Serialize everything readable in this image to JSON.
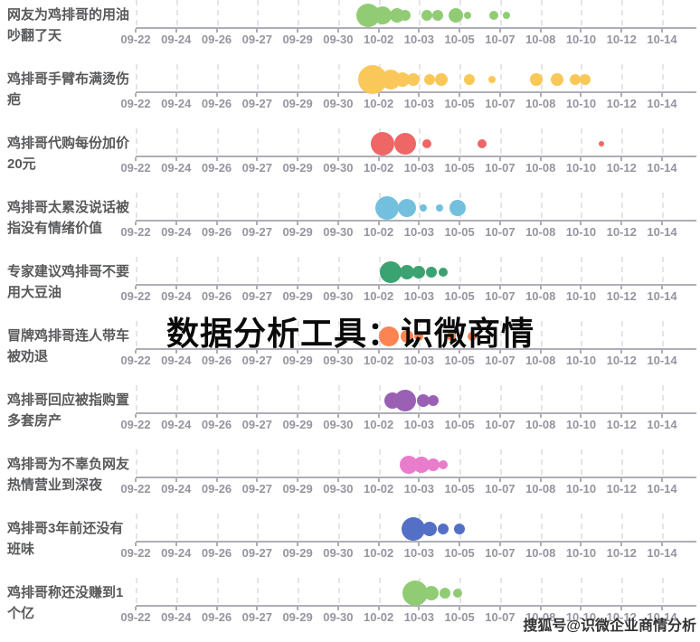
{
  "watermark": "数据分析工具：识微商情",
  "credit": "搜狐号@识微企业商情分析",
  "axis": {
    "dates": [
      "09-22",
      "09-24",
      "09-26",
      "09-27",
      "09-29",
      "09-30",
      "10-02",
      "10-03",
      "10-05",
      "10-07",
      "10-08",
      "10-10",
      "10-12",
      "10-14"
    ]
  },
  "chart_data": {
    "type": "scatter",
    "subtype": "bubble-timeline",
    "description": "每行一个热点话题，气泡沿日期轴分布，气泡大小表示当日话题热度声量；pos 为日期刻度的小数索引(0=09-22 … 13=10-14)，size 为气泡半径(px)",
    "x_ticks": [
      "09-22",
      "09-24",
      "09-26",
      "09-27",
      "09-29",
      "09-30",
      "10-02",
      "10-03",
      "10-05",
      "10-07",
      "10-08",
      "10-10",
      "10-12",
      "10-14"
    ],
    "grid": "dashed vertical lines at each tick",
    "legend": "none",
    "topics": [
      {
        "name": "网友为鸡排哥的用油吵翻了天",
        "color": "#91cc75",
        "bubbles": [
          {
            "pos": 5.75,
            "size": 13
          },
          {
            "pos": 6.1,
            "size": 10
          },
          {
            "pos": 6.45,
            "size": 8
          },
          {
            "pos": 6.65,
            "size": 6
          },
          {
            "pos": 7.2,
            "size": 6
          },
          {
            "pos": 7.45,
            "size": 6
          },
          {
            "pos": 7.9,
            "size": 8
          },
          {
            "pos": 8.2,
            "size": 4
          },
          {
            "pos": 8.85,
            "size": 5
          },
          {
            "pos": 9.15,
            "size": 4
          }
        ]
      },
      {
        "name": "鸡排哥手臂布满烫伤疤",
        "color": "#fac858",
        "bubbles": [
          {
            "pos": 5.85,
            "size": 16
          },
          {
            "pos": 6.3,
            "size": 11
          },
          {
            "pos": 6.6,
            "size": 8
          },
          {
            "pos": 6.85,
            "size": 7
          },
          {
            "pos": 7.25,
            "size": 6
          },
          {
            "pos": 7.55,
            "size": 7
          },
          {
            "pos": 8.25,
            "size": 6
          },
          {
            "pos": 8.8,
            "size": 4
          },
          {
            "pos": 9.9,
            "size": 7
          },
          {
            "pos": 10.4,
            "size": 7
          },
          {
            "pos": 10.85,
            "size": 6
          },
          {
            "pos": 11.1,
            "size": 6
          }
        ]
      },
      {
        "name": "鸡排哥代购每份加价20元",
        "color": "#ee6666",
        "bubbles": [
          {
            "pos": 6.1,
            "size": 13
          },
          {
            "pos": 6.65,
            "size": 12
          },
          {
            "pos": 7.2,
            "size": 5
          },
          {
            "pos": 8.55,
            "size": 5
          },
          {
            "pos": 11.5,
            "size": 3
          }
        ]
      },
      {
        "name": "鸡排哥太累没说话被指没有情绪价值",
        "color": "#73c0de",
        "bubbles": [
          {
            "pos": 6.2,
            "size": 13
          },
          {
            "pos": 6.7,
            "size": 10
          },
          {
            "pos": 7.1,
            "size": 4
          },
          {
            "pos": 7.5,
            "size": 4
          },
          {
            "pos": 7.95,
            "size": 9
          }
        ]
      },
      {
        "name": "专家建议鸡排哥不要用大豆油",
        "color": "#3ba272",
        "bubbles": [
          {
            "pos": 6.3,
            "size": 12
          },
          {
            "pos": 6.7,
            "size": 8
          },
          {
            "pos": 7.0,
            "size": 7
          },
          {
            "pos": 7.3,
            "size": 6
          },
          {
            "pos": 7.6,
            "size": 5
          }
        ]
      },
      {
        "name": "冒牌鸡排哥连人带车被劝退",
        "color": "#fc8452",
        "bubbles": [
          {
            "pos": 6.25,
            "size": 11
          },
          {
            "pos": 6.7,
            "size": 7
          },
          {
            "pos": 7.0,
            "size": 5
          },
          {
            "pos": 7.8,
            "size": 5
          },
          {
            "pos": 8.3,
            "size": 5
          }
        ]
      },
      {
        "name": "鸡排哥回应被指购置多套房产",
        "color": "#9a60b4",
        "bubbles": [
          {
            "pos": 6.35,
            "size": 9
          },
          {
            "pos": 6.65,
            "size": 12
          },
          {
            "pos": 7.1,
            "size": 7
          },
          {
            "pos": 7.35,
            "size": 6
          }
        ]
      },
      {
        "name": "鸡排哥为不辜负网友热情营业到深夜",
        "color": "#ea7ccc",
        "bubbles": [
          {
            "pos": 6.75,
            "size": 10
          },
          {
            "pos": 7.05,
            "size": 9
          },
          {
            "pos": 7.35,
            "size": 7
          },
          {
            "pos": 7.6,
            "size": 5
          }
        ]
      },
      {
        "name": "鸡排哥3年前还没有班味",
        "color": "#5470c6",
        "bubbles": [
          {
            "pos": 6.85,
            "size": 13
          },
          {
            "pos": 7.25,
            "size": 8
          },
          {
            "pos": 7.6,
            "size": 6
          },
          {
            "pos": 8.0,
            "size": 6
          }
        ]
      },
      {
        "name": "鸡排哥称还没赚到1个亿",
        "color": "#91cc75",
        "bubbles": [
          {
            "pos": 6.9,
            "size": 14
          },
          {
            "pos": 7.3,
            "size": 8
          },
          {
            "pos": 7.65,
            "size": 6
          },
          {
            "pos": 7.95,
            "size": 5
          }
        ]
      }
    ]
  }
}
